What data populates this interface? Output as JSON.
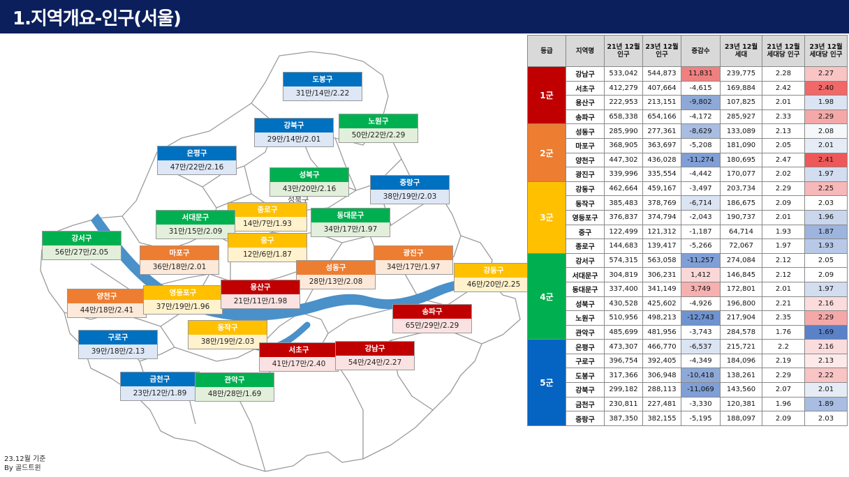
{
  "header": {
    "title": "1.지역개요-인구(서울)"
  },
  "footnote": {
    "line1": "23.12월 기준",
    "line2": "By 골드트윈"
  },
  "map": {
    "stray_text": "성북구",
    "labels": [
      {
        "name": "도봉구",
        "value": "31만/14만/2.22",
        "tier": 5
      },
      {
        "name": "노원구",
        "value": "50만/22만/2.29",
        "tier": 4
      },
      {
        "name": "강북구",
        "value": "29만/14만/2.01",
        "tier": 5
      },
      {
        "name": "은평구",
        "value": "47만/22만/2.16",
        "tier": 5
      },
      {
        "name": "성북구",
        "value": "43만/20만/2.16",
        "tier": 4
      },
      {
        "name": "중랑구",
        "value": "38만/19만/2.03",
        "tier": 5
      },
      {
        "name": "종로구",
        "value": "14만/7만/1.93",
        "tier": 3
      },
      {
        "name": "동대문구",
        "value": "34만/17만/1.97",
        "tier": 4
      },
      {
        "name": "서대문구",
        "value": "31만/15만/2.09",
        "tier": 4
      },
      {
        "name": "중구",
        "value": "12만/6만/1.87",
        "tier": 3
      },
      {
        "name": "강서구",
        "value": "56만/27만/2.05",
        "tier": 4
      },
      {
        "name": "마포구",
        "value": "36만/18만/2.01",
        "tier": 2
      },
      {
        "name": "광진구",
        "value": "34만/17만/1.97",
        "tier": 2
      },
      {
        "name": "성동구",
        "value": "28만/13만/2.08",
        "tier": 2
      },
      {
        "name": "강동구",
        "value": "46만/20만/2.25",
        "tier": 3
      },
      {
        "name": "양천구",
        "value": "44만/18만/2.41",
        "tier": 2
      },
      {
        "name": "영등포구",
        "value": "37만/19만/1.96",
        "tier": 3
      },
      {
        "name": "용산구",
        "value": "21만/11만/1.98",
        "tier": 1
      },
      {
        "name": "송파구",
        "value": "65만/29만/2.29",
        "tier": 1
      },
      {
        "name": "동작구",
        "value": "38만/19만/2.03",
        "tier": 3
      },
      {
        "name": "구로구",
        "value": "39만/18만/2.13",
        "tier": 5
      },
      {
        "name": "서초구",
        "value": "41만/17만/2.40",
        "tier": 1
      },
      {
        "name": "강남구",
        "value": "54만/24만/2.27",
        "tier": 1
      },
      {
        "name": "금천구",
        "value": "23만/12만/1.89",
        "tier": 5
      },
      {
        "name": "관악구",
        "value": "48만/28만/1.69",
        "tier": 4
      }
    ]
  },
  "table": {
    "headers": [
      "등급",
      "지역명",
      "21년 12월\n인구",
      "23년 12월\n인구",
      "증감수",
      "23년 12월\n세대",
      "21년 12월\n세대당 인구",
      "23년 12월\n세대당 인구"
    ],
    "groups": [
      {
        "grade": "1군",
        "color": "#c00000",
        "rows": [
          {
            "name": "강남구",
            "pop21": "533,042",
            "pop23": "544,873",
            "diff": "11,831",
            "hh23": "239,775",
            "pph21": "2.28",
            "pph23": "2.27",
            "diffColor": "#f08080",
            "pphColor": "#f8c4c4"
          },
          {
            "name": "서초구",
            "pop21": "412,279",
            "pop23": "407,664",
            "diff": "-4,615",
            "hh23": "169,884",
            "pph21": "2.42",
            "pph23": "2.40",
            "diffColor": "#ffffff",
            "pphColor": "#f06868"
          },
          {
            "name": "용산구",
            "pop21": "222,953",
            "pop23": "213,151",
            "diff": "-9,802",
            "hh23": "107,825",
            "pph21": "2.01",
            "pph23": "1.98",
            "diffColor": "#8ea9d8",
            "pphColor": "#dbe4f2"
          },
          {
            "name": "송파구",
            "pop21": "658,338",
            "pop23": "654,166",
            "diff": "-4,172",
            "hh23": "285,927",
            "pph21": "2.33",
            "pph23": "2.29",
            "diffColor": "#ffffff",
            "pphColor": "#f4a8a8"
          }
        ]
      },
      {
        "grade": "2군",
        "color": "#ed7d31",
        "rows": [
          {
            "name": "성동구",
            "pop21": "285,990",
            "pop23": "277,361",
            "diff": "-8,629",
            "hh23": "133,089",
            "pph21": "2.13",
            "pph23": "2.08",
            "diffColor": "#a9bde2",
            "pphColor": "#f5f7fb"
          },
          {
            "name": "마포구",
            "pop21": "368,905",
            "pop23": "363,697",
            "diff": "-5,208",
            "hh23": "181,090",
            "pph21": "2.05",
            "pph23": "2.01",
            "diffColor": "#ffffff",
            "pphColor": "#e6ecf6"
          },
          {
            "name": "양천구",
            "pop21": "447,302",
            "pop23": "436,028",
            "diff": "-11,274",
            "hh23": "180,695",
            "pph21": "2.47",
            "pph23": "2.41",
            "diffColor": "#7f9fd6",
            "pphColor": "#ee5858"
          },
          {
            "name": "광진구",
            "pop21": "339,996",
            "pop23": "335,554",
            "diff": "-4,442",
            "hh23": "170,077",
            "pph21": "2.02",
            "pph23": "1.97",
            "diffColor": "#ffffff",
            "pphColor": "#d2ddef"
          }
        ]
      },
      {
        "grade": "3군",
        "color": "#ffc000",
        "rows": [
          {
            "name": "강동구",
            "pop21": "462,664",
            "pop23": "459,167",
            "diff": "-3,497",
            "hh23": "203,734",
            "pph21": "2.29",
            "pph23": "2.25",
            "diffColor": "#ffffff",
            "pphColor": "#f6b8b8"
          },
          {
            "name": "동작구",
            "pop21": "385,483",
            "pop23": "378,769",
            "diff": "-6,714",
            "hh23": "186,675",
            "pph21": "2.09",
            "pph23": "2.03",
            "diffColor": "#dbe4f2",
            "pphColor": "#ffffff"
          },
          {
            "name": "영등포구",
            "pop21": "376,837",
            "pop23": "374,794",
            "diff": "-2,043",
            "hh23": "190,737",
            "pph21": "2.01",
            "pph23": "1.96",
            "diffColor": "#ffffff",
            "pphColor": "#c9d6ec"
          },
          {
            "name": "중구",
            "pop21": "122,499",
            "pop23": "121,312",
            "diff": "-1,187",
            "hh23": "64,714",
            "pph21": "1.93",
            "pph23": "1.87",
            "diffColor": "#ffffff",
            "pphColor": "#9db4de"
          },
          {
            "name": "종로구",
            "pop21": "144,683",
            "pop23": "139,417",
            "diff": "-5,266",
            "hh23": "72,067",
            "pph21": "1.97",
            "pph23": "1.93",
            "diffColor": "#ffffff",
            "pphColor": "#b8c9e8"
          }
        ]
      },
      {
        "grade": "4군",
        "color": "#00b050",
        "rows": [
          {
            "name": "강서구",
            "pop21": "574,315",
            "pop23": "563,058",
            "diff": "-11,257",
            "hh23": "274,084",
            "pph21": "2.12",
            "pph23": "2.05",
            "diffColor": "#7f9fd6",
            "pphColor": "#ffffff"
          },
          {
            "name": "서대문구",
            "pop21": "304,819",
            "pop23": "306,231",
            "diff": "1,412",
            "hh23": "146,845",
            "pph21": "2.12",
            "pph23": "2.09",
            "diffColor": "#fbd8d8",
            "pphColor": "#ffffff"
          },
          {
            "name": "동대문구",
            "pop21": "337,400",
            "pop23": "341,149",
            "diff": "3,749",
            "hh23": "172,801",
            "pph21": "2.01",
            "pph23": "1.97",
            "diffColor": "#f6b0b0",
            "pphColor": "#d2ddef"
          },
          {
            "name": "성북구",
            "pop21": "430,528",
            "pop23": "425,602",
            "diff": "-4,926",
            "hh23": "196,800",
            "pph21": "2.21",
            "pph23": "2.16",
            "diffColor": "#ffffff",
            "pphColor": "#fbdcdc"
          },
          {
            "name": "노원구",
            "pop21": "510,956",
            "pop23": "498,213",
            "diff": "-12,743",
            "hh23": "217,904",
            "pph21": "2.35",
            "pph23": "2.29",
            "diffColor": "#6f93d0",
            "pphColor": "#f4a8a8"
          },
          {
            "name": "관악구",
            "pop21": "485,699",
            "pop23": "481,956",
            "diff": "-3,743",
            "hh23": "284,578",
            "pph21": "1.76",
            "pph23": "1.69",
            "diffColor": "#ffffff",
            "pphColor": "#5b82c8"
          }
        ]
      },
      {
        "grade": "5군",
        "color": "#0563c1",
        "rows": [
          {
            "name": "은평구",
            "pop21": "473,307",
            "pop23": "466,770",
            "diff": "-6,537",
            "hh23": "215,721",
            "pph21": "2.2",
            "pph23": "2.16",
            "diffColor": "#dbe4f2",
            "pphColor": "#fbdcdc"
          },
          {
            "name": "구로구",
            "pop21": "396,754",
            "pop23": "392,405",
            "diff": "-4,349",
            "hh23": "184,096",
            "pph21": "2.19",
            "pph23": "2.13",
            "diffColor": "#ffffff",
            "pphColor": "#fde9e9"
          },
          {
            "name": "도봉구",
            "pop21": "317,366",
            "pop23": "306,948",
            "diff": "-10,418",
            "hh23": "138,261",
            "pph21": "2.29",
            "pph23": "2.22",
            "diffColor": "#8ea9d8",
            "pphColor": "#f8c4c4"
          },
          {
            "name": "강북구",
            "pop21": "299,182",
            "pop23": "288,113",
            "diff": "-11,069",
            "hh23": "143,560",
            "pph21": "2.07",
            "pph23": "2.01",
            "diffColor": "#7f9fd6",
            "pphColor": "#e6ecf6"
          },
          {
            "name": "금천구",
            "pop21": "230,811",
            "pop23": "227,481",
            "diff": "-3,330",
            "hh23": "120,381",
            "pph21": "1.96",
            "pph23": "1.89",
            "diffColor": "#ffffff",
            "pphColor": "#a9bde2"
          },
          {
            "name": "중랑구",
            "pop21": "387,350",
            "pop23": "382,155",
            "diff": "-5,195",
            "hh23": "188,097",
            "pph21": "2.09",
            "pph23": "2.03",
            "diffColor": "#ffffff",
            "pphColor": "#ffffff"
          }
        ]
      }
    ]
  },
  "tier_colors": {
    "1": {
      "head": "#c00000",
      "body": "#fbe2e2"
    },
    "2": {
      "head": "#ed7d31",
      "body": "#fde9d9"
    },
    "3": {
      "head": "#ffc000",
      "body": "#fff2cc"
    },
    "4": {
      "head": "#00b050",
      "body": "#e2efda"
    },
    "5": {
      "head": "#0070c0",
      "body": "#dde7f5"
    }
  }
}
